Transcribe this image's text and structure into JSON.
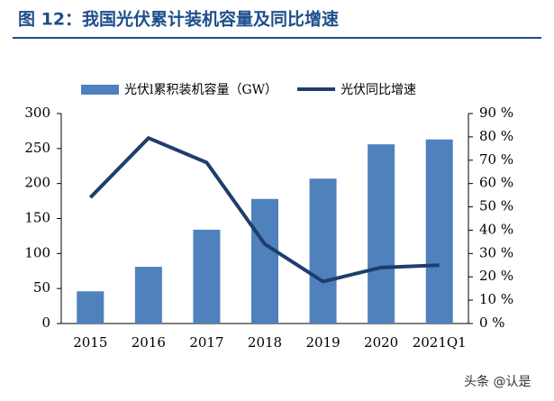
{
  "chart_data": {
    "type": "bar-line",
    "title": "图 12：我国光伏累计装机容量及同比增速",
    "categories": [
      "2015",
      "2016",
      "2017",
      "2018",
      "2019",
      "2020",
      "2021Q1"
    ],
    "series": [
      {
        "name": "光伏l累积装机容量（GW）",
        "type": "bar",
        "color": "#4f81bd",
        "values": [
          46,
          81,
          134,
          178,
          207,
          256,
          263
        ]
      },
      {
        "name": "光伏同比增速",
        "type": "line",
        "axis": "y2",
        "color": "#1f3e6e",
        "values": [
          54,
          79.5,
          69,
          34,
          18,
          24,
          25
        ]
      }
    ],
    "ylim": [
      0,
      300
    ],
    "yticks": [
      0,
      50,
      100,
      150,
      200,
      250,
      300
    ],
    "y2lim": [
      0,
      90
    ],
    "y2ticks": [
      {
        "value": 0,
        "label": "0 %"
      },
      {
        "value": 10,
        "label": "10 %"
      },
      {
        "value": 20,
        "label": "20 %"
      },
      {
        "value": 30,
        "label": "30 %"
      },
      {
        "value": 40,
        "label": "40 %"
      },
      {
        "value": 50,
        "label": "50 %"
      },
      {
        "value": 60,
        "label": "60 %"
      },
      {
        "value": 70,
        "label": "70 %"
      },
      {
        "value": 80,
        "label": "80 %"
      },
      {
        "value": 90,
        "label": "90 %"
      }
    ],
    "legend": "top",
    "watermark": "头条 @认是"
  }
}
